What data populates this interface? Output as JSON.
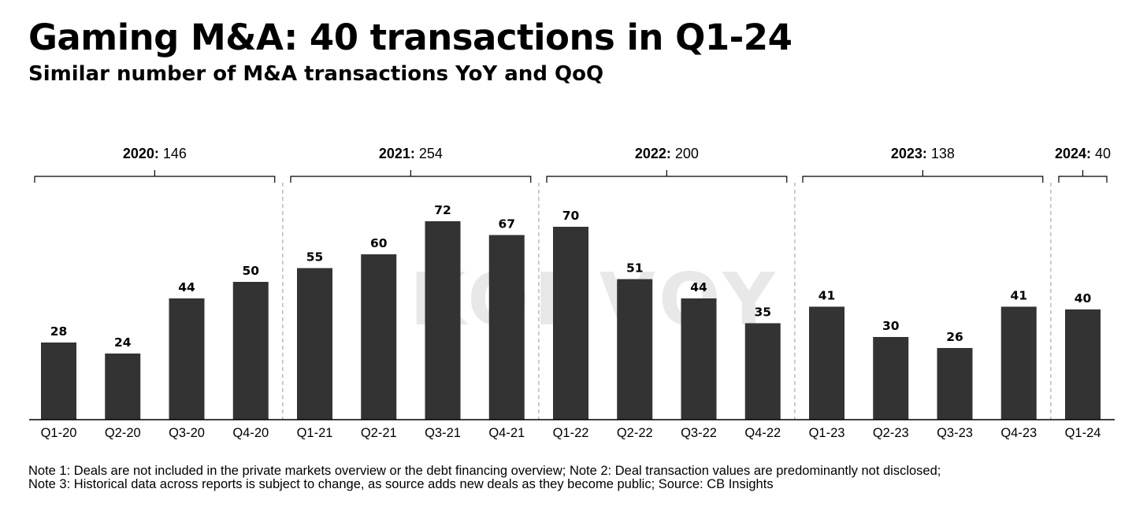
{
  "header": {
    "title": "Gaming M&A: 40 transactions in Q1-24",
    "subtitle": "Similar number of M&A transactions YoY and QoQ"
  },
  "watermark": {
    "text": "KONVOY"
  },
  "chart_data": {
    "type": "bar",
    "title": "Gaming M&A: 40 transactions in Q1-24",
    "subtitle": "Similar number of M&A transactions YoY and QoQ",
    "xlabel": "",
    "ylabel": "",
    "ylim": [
      0,
      80
    ],
    "grid": false,
    "bar_color": "#333333",
    "categories": [
      "Q1-20",
      "Q2-20",
      "Q3-20",
      "Q4-20",
      "Q1-21",
      "Q2-21",
      "Q3-21",
      "Q4-21",
      "Q1-22",
      "Q2-22",
      "Q3-22",
      "Q4-22",
      "Q1-23",
      "Q2-23",
      "Q3-23",
      "Q4-23",
      "Q1-24"
    ],
    "values": [
      28,
      24,
      44,
      50,
      55,
      60,
      72,
      67,
      70,
      51,
      44,
      35,
      41,
      30,
      26,
      41,
      40
    ],
    "year_groups": [
      {
        "year": "2020:",
        "total": "146",
        "start": 0,
        "end": 3
      },
      {
        "year": "2021:",
        "total": "254",
        "start": 4,
        "end": 7
      },
      {
        "year": "2022:",
        "total": "200",
        "start": 8,
        "end": 11
      },
      {
        "year": "2023:",
        "total": "138",
        "start": 12,
        "end": 15
      },
      {
        "year": "2024:",
        "total": "40",
        "start": 16,
        "end": 16
      }
    ]
  },
  "notes": {
    "text": "Note 1: Deals are not included in the private markets overview or the debt financing overview; Note 2: Deal transaction values are predominantly not disclosed; Note 3: Historical data across reports is subject to change, as source adds new deals as they become public; Source: CB Insights"
  }
}
